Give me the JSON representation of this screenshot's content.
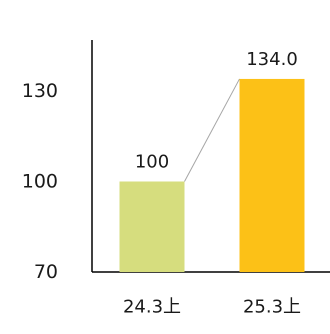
{
  "chart_data": {
    "type": "bar",
    "title": "",
    "xlabel": "",
    "ylabel": "",
    "categories": [
      "24.3上",
      "25.3上"
    ],
    "values": [
      100,
      134.0
    ],
    "value_labels": [
      "100",
      "134.0"
    ],
    "ylim": [
      70,
      145
    ],
    "yticks": [
      70,
      100,
      130
    ],
    "ytick_labels": [
      "70",
      "100",
      "130"
    ],
    "bar_colors": [
      "#d6dd7e",
      "#fcc117"
    ],
    "connector_color": "#a6a6a6",
    "axis_color": "#000000",
    "grid": false,
    "legend": "none"
  }
}
